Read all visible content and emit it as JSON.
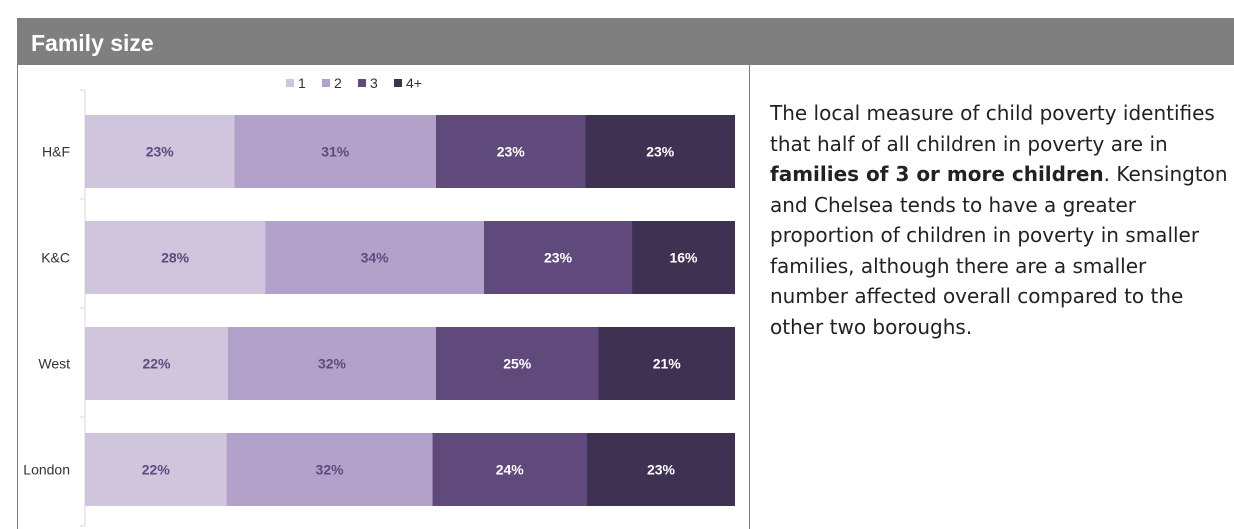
{
  "panel": {
    "title": "Family size"
  },
  "chart_data": {
    "type": "bar",
    "orientation": "horizontal",
    "stacked": true,
    "categories": [
      "H&F",
      "K&C",
      "West",
      "London"
    ],
    "series": [
      {
        "name": "1",
        "values": [
          23,
          28,
          22,
          22
        ],
        "labels": [
          "23%",
          "28%",
          "22%",
          "22%"
        ],
        "color": "#cfc5dc",
        "label_color": "#5e4a7e"
      },
      {
        "name": "2",
        "values": [
          31,
          34,
          32,
          32
        ],
        "labels": [
          "31%",
          "34%",
          "32%",
          "32%"
        ],
        "color": "#b2a2c9",
        "label_color": "#5e4a7e"
      },
      {
        "name": "3",
        "values": [
          23,
          23,
          25,
          24
        ],
        "labels": [
          "23%",
          "23%",
          "25%",
          "24%"
        ],
        "color": "#604a7b",
        "label_color": "#ffffff"
      },
      {
        "name": "4+",
        "values": [
          23,
          16,
          21,
          23
        ],
        "labels": [
          "23%",
          "16%",
          "21%",
          "23%"
        ],
        "color": "#3f3151",
        "label_color": "#ffffff"
      }
    ],
    "legend_position": "top",
    "xlabel": "",
    "ylabel": "",
    "grid": false
  },
  "description": {
    "part1": "The local measure of child poverty identifies that half of all children in poverty are in ",
    "bold": "families of 3 or more children",
    "part2": ". Kensington and Chelsea tends to have a greater proportion of children in poverty in smaller families, although there are a smaller number affected overall compared to the other two boroughs."
  }
}
